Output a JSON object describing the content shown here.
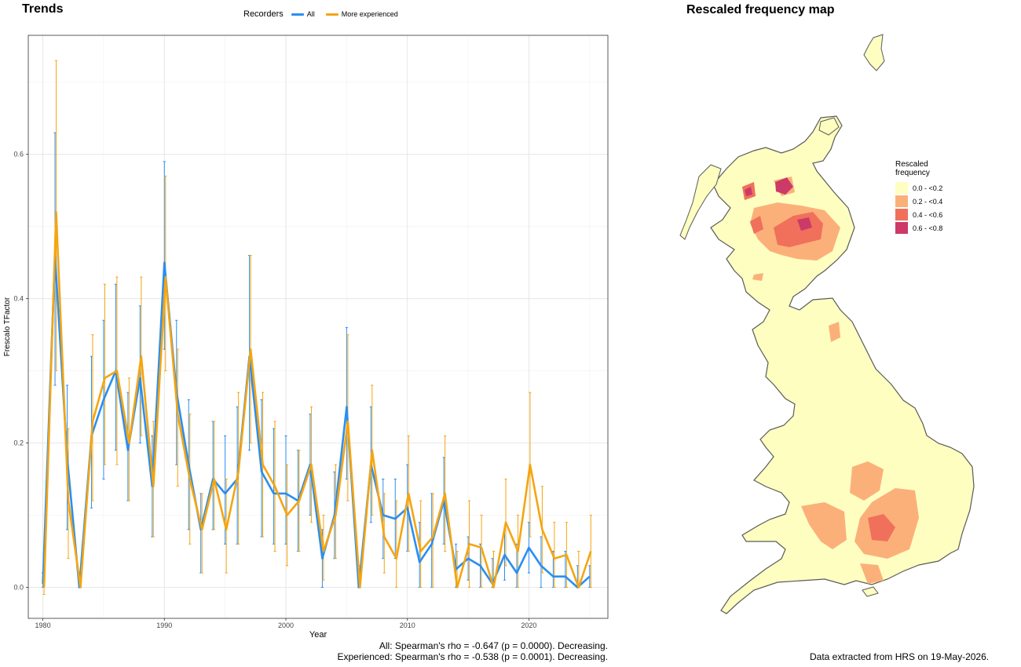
{
  "trends_title": "Trends",
  "map_title": "Rescaled frequency map",
  "legend": {
    "title": "Recorders",
    "items": [
      {
        "label": "All",
        "color": "#2b8ef0"
      },
      {
        "label": "More experienced",
        "color": "#f5a511"
      }
    ]
  },
  "stats": {
    "line1": "All: Spearman's rho = -0.647 (p = 0.0000). Decreasing.",
    "line2": "Experienced: Spearman's rho = -0.538 (p = 0.0001). Decreasing."
  },
  "footnote": "Data extracted from HRS on 19-May-2026.",
  "map_legend": {
    "title": "Rescaled frequency",
    "items": [
      {
        "label": "0.0 - <0.2",
        "color": "#fefec0"
      },
      {
        "label": "0.2 - <0.4",
        "color": "#fbb07a"
      },
      {
        "label": "0.4 - <0.6",
        "color": "#f0705b"
      },
      {
        "label": "0.6 - <0.8",
        "color": "#cc3a68"
      }
    ]
  },
  "chart_data": {
    "type": "line",
    "xlabel": "Year",
    "ylabel": "Frescalo TFactor",
    "xlim": [
      1978.8,
      2026.5
    ],
    "ylim": [
      -0.043,
      0.765
    ],
    "xticks": [
      1980,
      1990,
      2000,
      2010,
      2020
    ],
    "yticks": [
      0.0,
      0.2,
      0.4,
      0.6
    ],
    "ytick_labels": [
      "0.0",
      "0.2",
      "0.4",
      "0.6"
    ],
    "grid": true,
    "legend_position": "top",
    "x": [
      1980,
      1981,
      1982,
      1983,
      1984,
      1985,
      1986,
      1987,
      1988,
      1989,
      1990,
      1991,
      1992,
      1993,
      1994,
      1995,
      1996,
      1997,
      1998,
      1999,
      2000,
      2001,
      2002,
      2003,
      2004,
      2005,
      2006,
      2007,
      2008,
      2009,
      2010,
      2011,
      2012,
      2013,
      2014,
      2015,
      2016,
      2017,
      2018,
      2019,
      2020,
      2021,
      2022,
      2023,
      2024,
      2025
    ],
    "series": [
      {
        "name": "All",
        "color": "#2b8ef0",
        "values": [
          0.005,
          0.46,
          0.18,
          0.0,
          0.21,
          0.26,
          0.3,
          0.19,
          0.29,
          0.14,
          0.45,
          0.27,
          0.17,
          0.08,
          0.15,
          0.13,
          0.15,
          0.32,
          0.16,
          0.13,
          0.13,
          0.12,
          0.17,
          0.04,
          0.1,
          0.25,
          0.0,
          0.17,
          0.1,
          0.095,
          0.11,
          0.035,
          0.06,
          0.12,
          0.025,
          0.04,
          0.03,
          0.005,
          0.045,
          0.02,
          0.055,
          0.03,
          0.015,
          0.015,
          0.0,
          0.015
        ],
        "upper": [
          0.02,
          0.63,
          0.28,
          0.01,
          0.32,
          0.37,
          0.42,
          0.27,
          0.39,
          0.21,
          0.59,
          0.37,
          0.26,
          0.13,
          0.23,
          0.21,
          0.25,
          0.46,
          0.26,
          0.22,
          0.21,
          0.19,
          0.24,
          0.08,
          0.16,
          0.36,
          0.03,
          0.25,
          0.15,
          0.15,
          0.17,
          0.09,
          0.13,
          0.18,
          0.06,
          0.07,
          0.06,
          0.04,
          0.08,
          0.06,
          0.09,
          0.07,
          0.05,
          0.05,
          0.03,
          0.03
        ],
        "lower": [
          0.0,
          0.28,
          0.08,
          0.0,
          0.11,
          0.15,
          0.19,
          0.12,
          0.2,
          0.07,
          0.33,
          0.17,
          0.08,
          0.02,
          0.08,
          0.06,
          0.06,
          0.19,
          0.07,
          0.06,
          0.06,
          0.05,
          0.1,
          0.0,
          0.04,
          0.15,
          0.0,
          0.09,
          0.04,
          0.04,
          0.05,
          0.0,
          0.0,
          0.06,
          0.0,
          0.01,
          0.0,
          0.0,
          0.01,
          0.0,
          0.02,
          0.0,
          0.0,
          0.0,
          0.0,
          0.0
        ]
      },
      {
        "name": "More experienced",
        "color": "#f5a511",
        "values": [
          0.0,
          0.52,
          0.12,
          0.0,
          0.23,
          0.29,
          0.3,
          0.2,
          0.32,
          0.14,
          0.43,
          0.24,
          0.15,
          0.08,
          0.15,
          0.08,
          0.16,
          0.33,
          0.17,
          0.14,
          0.1,
          0.12,
          0.17,
          0.05,
          0.1,
          0.23,
          0.0,
          0.19,
          0.07,
          0.04,
          0.13,
          0.05,
          0.07,
          0.13,
          0.0,
          0.06,
          0.055,
          0.0,
          0.09,
          0.05,
          0.17,
          0.08,
          0.04,
          0.045,
          0.0,
          0.05
        ],
        "upper": [
          0.01,
          0.73,
          0.22,
          0.02,
          0.35,
          0.42,
          0.43,
          0.29,
          0.43,
          0.23,
          0.57,
          0.33,
          0.24,
          0.13,
          0.23,
          0.15,
          0.27,
          0.46,
          0.27,
          0.23,
          0.17,
          0.19,
          0.25,
          0.1,
          0.17,
          0.35,
          0.02,
          0.28,
          0.13,
          0.12,
          0.21,
          0.12,
          0.13,
          0.21,
          0.05,
          0.12,
          0.1,
          0.05,
          0.15,
          0.1,
          0.27,
          0.14,
          0.09,
          0.09,
          0.05,
          0.1
        ],
        "lower": [
          -0.01,
          0.3,
          0.04,
          0.0,
          0.12,
          0.17,
          0.17,
          0.12,
          0.21,
          0.07,
          0.3,
          0.14,
          0.06,
          0.02,
          0.08,
          0.02,
          0.06,
          0.2,
          0.07,
          0.05,
          0.03,
          0.05,
          0.09,
          0.01,
          0.04,
          0.12,
          0.0,
          0.1,
          0.02,
          0.0,
          0.05,
          0.0,
          0.0,
          0.05,
          0.0,
          0.0,
          0.0,
          0.0,
          0.03,
          0.0,
          0.07,
          0.02,
          0.0,
          0.0,
          0.0,
          0.0
        ]
      }
    ]
  }
}
